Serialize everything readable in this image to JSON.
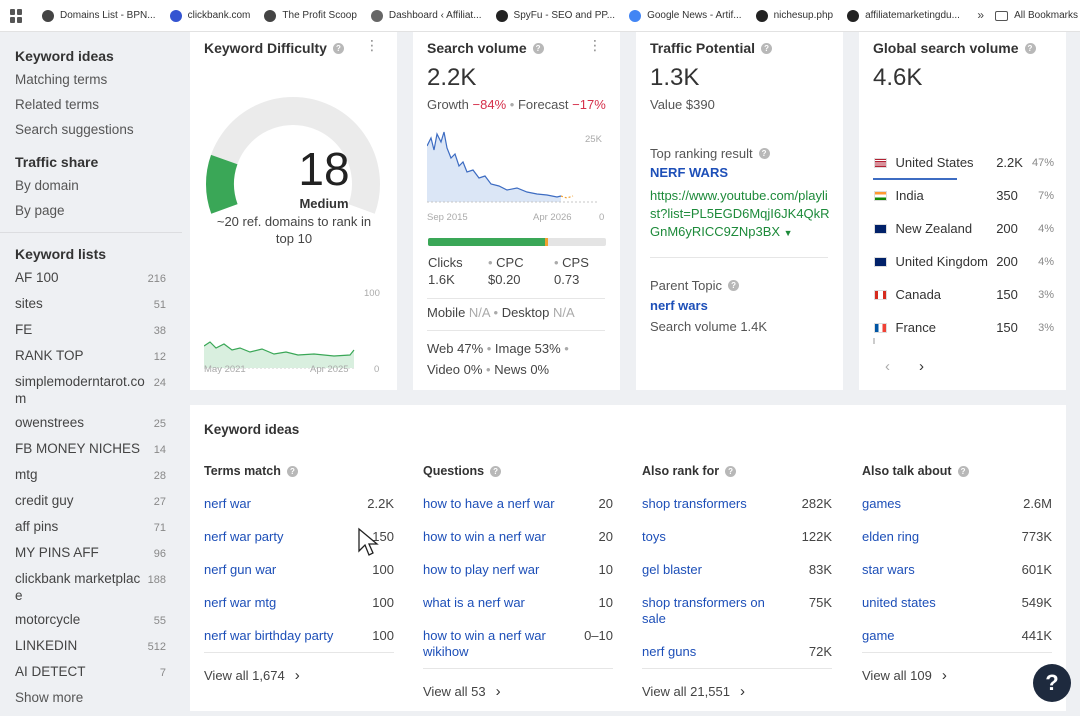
{
  "bookmarks": {
    "items": [
      {
        "label": "Domains List - BPN...",
        "color": "#444"
      },
      {
        "label": "clickbank.com",
        "color": "#3454d1"
      },
      {
        "label": "The Profit Scoop",
        "color": "#444"
      },
      {
        "label": "Dashboard ‹ Affiliat...",
        "color": "#666"
      },
      {
        "label": "SpyFu - SEO and PP...",
        "color": "#222"
      },
      {
        "label": "Google News - Artif...",
        "color": "#4285f4"
      },
      {
        "label": "nichesup.php",
        "color": "#222"
      },
      {
        "label": "affiliatemarketingdu...",
        "color": "#222"
      }
    ],
    "more": "»",
    "all": "All Bookmarks"
  },
  "sidebar": {
    "keyword_ideas": {
      "head": "Keyword ideas",
      "links": [
        "Matching terms",
        "Related terms",
        "Search suggestions"
      ]
    },
    "traffic_share": {
      "head": "Traffic share",
      "links": [
        "By domain",
        "By page"
      ]
    },
    "keyword_lists": {
      "head": "Keyword lists",
      "items": [
        {
          "name": "AF 100",
          "count": "216"
        },
        {
          "name": "sites",
          "count": "51"
        },
        {
          "name": "FE",
          "count": "38"
        },
        {
          "name": "RANK TOP",
          "count": "12"
        },
        {
          "name": "simplemoderntarot.com",
          "count": "24"
        },
        {
          "name": "owenstrees",
          "count": "25"
        },
        {
          "name": "FB MONEY NICHES",
          "count": "14"
        },
        {
          "name": "mtg",
          "count": "28"
        },
        {
          "name": "credit guy",
          "count": "27"
        },
        {
          "name": "aff pins",
          "count": "71"
        },
        {
          "name": "MY PINS AFF",
          "count": "96"
        },
        {
          "name": "clickbank marketplace",
          "count": "188"
        },
        {
          "name": "motorcycle",
          "count": "55"
        },
        {
          "name": "LINKEDIN",
          "count": "512"
        },
        {
          "name": "AI DETECT",
          "count": "7"
        }
      ],
      "show_more": "Show more"
    }
  },
  "kd": {
    "title": "Keyword Difficulty",
    "value": "18",
    "score": 18,
    "label": "Medium",
    "desc": "~20 ref. domains to rank in top 10",
    "chart_max": "100",
    "chart_min": "0",
    "start": "May 2021",
    "end": "Apr 2025",
    "accent": "#3aa757"
  },
  "sv": {
    "title": "Search volume",
    "value": "2.2K",
    "growth_label": "Growth",
    "growth": "−84%",
    "forecast_label": "Forecast",
    "forecast": "−17%",
    "chart_max": "25K",
    "chart_min": "0",
    "start": "Sep 2015",
    "end": "Apr 2026",
    "clicks_label": "Clicks",
    "clicks": "1.6K",
    "cpc_label": "CPC",
    "cpc": "$0.20",
    "cps_label": "CPS",
    "cps": "0.73",
    "mobile_label": "Mobile",
    "mobile": "N/A",
    "desktop_label": "Desktop",
    "desktop": "N/A",
    "web": "Web 47%",
    "image": "Image 53%",
    "video": "Video 0%",
    "news": "News 0%",
    "clicks_share": 0.66
  },
  "tp": {
    "title": "Traffic Potential",
    "value": "1.3K",
    "value_usd": "Value $390",
    "top_label": "Top ranking result",
    "top_title": "NERF WARS",
    "top_url": "https://www.youtube.com/playlist?list=PL5EGD6MqjI6JK4QkRGnM6yRICC9ZNp3BX",
    "parent_label": "Parent Topic",
    "parent": "nerf wars",
    "parent_sv": "Search volume 1.4K"
  },
  "gsv": {
    "title": "Global search volume",
    "value": "4.6K",
    "countries": [
      {
        "name": "United States",
        "vol": "2.2K",
        "pct": "47%",
        "flag": "us"
      },
      {
        "name": "India",
        "vol": "350",
        "pct": "7%",
        "flag": "in"
      },
      {
        "name": "New Zealand",
        "vol": "200",
        "pct": "4%",
        "flag": "nz"
      },
      {
        "name": "United Kingdom",
        "vol": "200",
        "pct": "4%",
        "flag": "uk"
      },
      {
        "name": "Canada",
        "vol": "150",
        "pct": "3%",
        "flag": "ca"
      },
      {
        "name": "France",
        "vol": "150",
        "pct": "3%",
        "flag": "fr"
      }
    ]
  },
  "ideas": {
    "title": "Keyword ideas",
    "columns": [
      {
        "head": "Terms match",
        "rows": [
          {
            "k": "nerf war",
            "n": "2.2K"
          },
          {
            "k": "nerf war party",
            "n": "150"
          },
          {
            "k": "nerf gun war",
            "n": "100"
          },
          {
            "k": "nerf war mtg",
            "n": "100"
          },
          {
            "k": "nerf war birthday party",
            "n": "100"
          }
        ],
        "view_all": "View all 1,674"
      },
      {
        "head": "Questions",
        "rows": [
          {
            "k": "how to have a nerf war",
            "n": "20"
          },
          {
            "k": "how to win a nerf war",
            "n": "20"
          },
          {
            "k": "how to play nerf war",
            "n": "10"
          },
          {
            "k": "what is a nerf war",
            "n": "10"
          },
          {
            "k": "how to win a nerf war wikihow",
            "n": "0–10"
          }
        ],
        "view_all": "View all 53"
      },
      {
        "head": "Also rank for",
        "rows": [
          {
            "k": "shop transformers",
            "n": "282K"
          },
          {
            "k": "toys",
            "n": "122K"
          },
          {
            "k": "gel blaster",
            "n": "83K"
          },
          {
            "k": "shop transformers on sale",
            "n": "75K"
          },
          {
            "k": "nerf guns",
            "n": "72K"
          }
        ],
        "view_all": "View all 21,551"
      },
      {
        "head": "Also talk about",
        "rows": [
          {
            "k": "games",
            "n": "2.6M"
          },
          {
            "k": "elden ring",
            "n": "773K"
          },
          {
            "k": "star wars",
            "n": "601K"
          },
          {
            "k": "united states",
            "n": "549K"
          },
          {
            "k": "game",
            "n": "441K"
          }
        ],
        "view_all": "View all 109"
      }
    ]
  },
  "help": "?"
}
